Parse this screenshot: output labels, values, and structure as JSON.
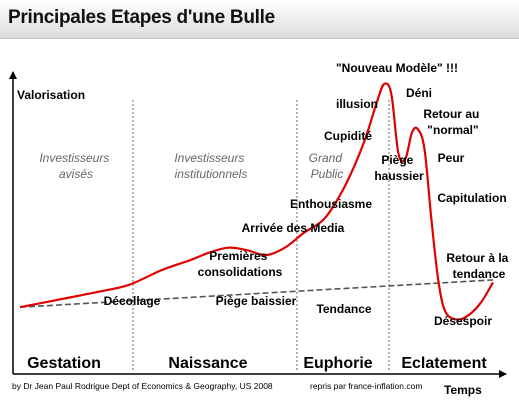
{
  "title": "Principales Etapes d'une Bulle",
  "chart_data": {
    "type": "line",
    "ylabel": "Valorisation",
    "xlabel": "Temps",
    "series": [
      {
        "name": "",
        "style": "curve",
        "color": "#e00000",
        "points": [
          [
            0,
            0.1
          ],
          [
            0.08,
            0.13
          ],
          [
            0.16,
            0.16
          ],
          [
            0.23,
            0.19
          ],
          [
            0.3,
            0.25
          ],
          [
            0.36,
            0.29
          ],
          [
            0.4,
            0.32
          ],
          [
            0.44,
            0.34
          ],
          [
            0.48,
            0.33
          ],
          [
            0.52,
            0.31
          ],
          [
            0.56,
            0.34
          ],
          [
            0.6,
            0.4
          ],
          [
            0.64,
            0.45
          ],
          [
            0.67,
            0.53
          ],
          [
            0.7,
            0.64
          ],
          [
            0.73,
            0.78
          ],
          [
            0.755,
            0.93
          ],
          [
            0.77,
            1.0
          ],
          [
            0.785,
            0.96
          ],
          [
            0.8,
            0.72
          ],
          [
            0.815,
            0.7
          ],
          [
            0.828,
            0.8
          ],
          [
            0.84,
            0.82
          ],
          [
            0.855,
            0.74
          ],
          [
            0.87,
            0.45
          ],
          [
            0.885,
            0.2
          ],
          [
            0.9,
            0.08
          ],
          [
            0.925,
            0.05
          ],
          [
            0.95,
            0.07
          ],
          [
            0.975,
            0.12
          ],
          [
            1.0,
            0.2
          ]
        ]
      },
      {
        "name": "Tendance",
        "style": "dashed",
        "color": "#555555",
        "points": [
          [
            0,
            0.1
          ],
          [
            1.0,
            0.21
          ]
        ]
      }
    ],
    "phases": [
      "Gestation",
      "Naissance",
      "Euphorie",
      "Eclatement"
    ],
    "groups": [
      {
        "line1": "Investisseurs",
        "line2": "avisés"
      },
      {
        "line1": "Investisseurs",
        "line2": "institutionnels"
      },
      {
        "line1": "Grand",
        "line2": "Public"
      }
    ],
    "annotations": [
      {
        "lines": [
          "Décollage"
        ]
      },
      {
        "lines": [
          "Piège baissier"
        ]
      },
      {
        "lines": [
          "Premières",
          "consolidations"
        ]
      },
      {
        "lines": [
          "Arrivée des Media"
        ]
      },
      {
        "lines": [
          "Enthousiasme"
        ]
      },
      {
        "lines": [
          "Cupidité"
        ]
      },
      {
        "lines": [
          "illusion"
        ]
      },
      {
        "lines": [
          "\"Nouveau Modèle\" !!!"
        ]
      },
      {
        "lines": [
          "Déni"
        ]
      },
      {
        "lines": [
          "Retour au",
          "\"normal\""
        ]
      },
      {
        "lines": [
          "Piège",
          "haussier"
        ]
      },
      {
        "lines": [
          "Peur"
        ]
      },
      {
        "lines": [
          "Capitulation"
        ]
      },
      {
        "lines": [
          "Retour à la",
          "tendance"
        ]
      },
      {
        "lines": [
          "Tendance"
        ]
      },
      {
        "lines": [
          "Désespoir"
        ]
      }
    ]
  },
  "footer": {
    "credit": "by Dr Jean Paul Rodrigue Dept of Economics & Geography, US  2008",
    "source": "repris par  france-inflation.com"
  }
}
